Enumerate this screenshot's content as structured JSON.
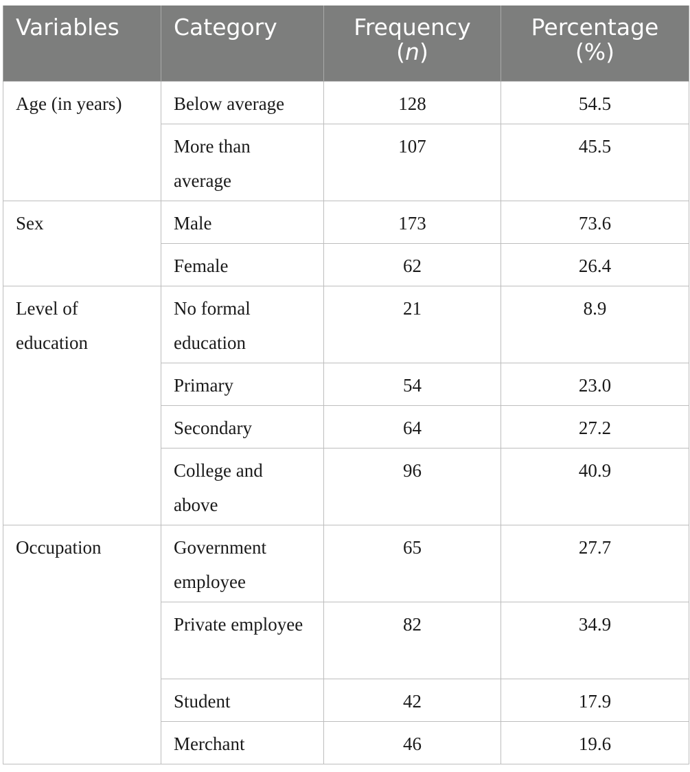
{
  "headers": {
    "variables": "Variables",
    "category": "Category",
    "frequency_line1": "Frequency",
    "frequency_line2_pre": "(",
    "frequency_line2_n": "n",
    "frequency_line2_post": ")",
    "percentage_line1": "Percentage",
    "percentage_line2": "(%)"
  },
  "groups": [
    {
      "variable": "Age (in years)",
      "rows": [
        {
          "category": "Below average",
          "frequency": "128",
          "percentage": "54.5"
        },
        {
          "category": "More than average",
          "frequency": "107",
          "percentage": "45.5"
        }
      ]
    },
    {
      "variable": "Sex",
      "rows": [
        {
          "category": "Male",
          "frequency": "173",
          "percentage": "73.6"
        },
        {
          "category": "Female",
          "frequency": "62",
          "percentage": "26.4"
        }
      ]
    },
    {
      "variable": "Level of education",
      "rows": [
        {
          "category": "No formal education",
          "frequency": "21",
          "percentage": "8.9"
        },
        {
          "category": "Primary",
          "frequency": "54",
          "percentage": "23.0"
        },
        {
          "category": "Secondary",
          "frequency": "64",
          "percentage": "27.2"
        },
        {
          "category": "College and above",
          "frequency": "96",
          "percentage": "40.9"
        }
      ]
    },
    {
      "variable": "Occupation",
      "rows": [
        {
          "category": "Government employee",
          "frequency": "65",
          "percentage": "27.7"
        },
        {
          "category": "Private employee",
          "frequency": "82",
          "percentage": "34.9"
        },
        {
          "category": "Student",
          "frequency": "42",
          "percentage": "17.9"
        },
        {
          "category": "Merchant",
          "frequency": "46",
          "percentage": "19.6"
        }
      ]
    }
  ]
}
